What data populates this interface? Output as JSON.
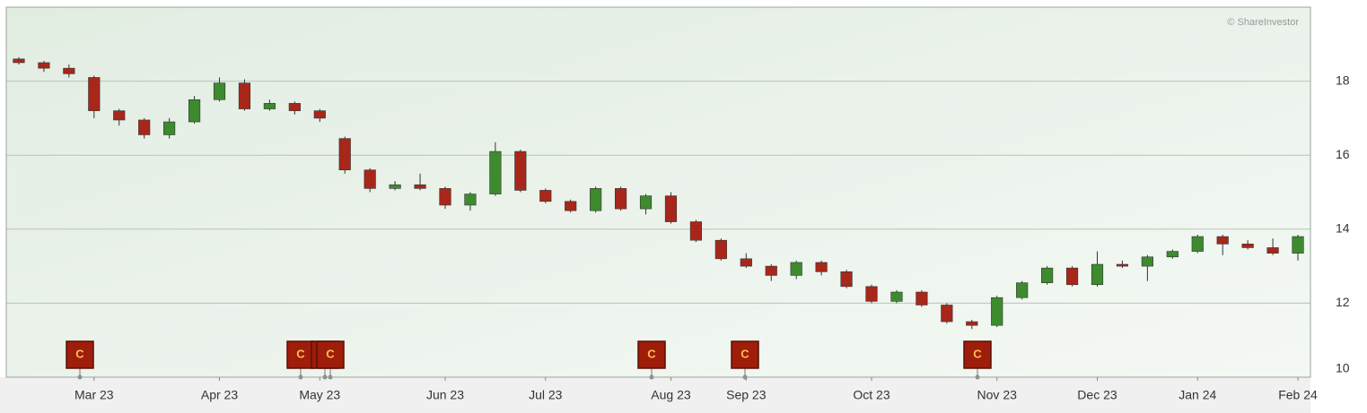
{
  "chart_data": {
    "type": "candlestick",
    "watermark": "© ShareInvestor",
    "categories": [
      null,
      null,
      null,
      "Mar 23",
      null,
      null,
      null,
      null,
      "Apr 23",
      null,
      null,
      null,
      "May 23",
      null,
      null,
      null,
      null,
      "Jun 23",
      null,
      null,
      null,
      "Jul 23",
      null,
      null,
      null,
      null,
      "Aug 23",
      null,
      null,
      "Sep 23",
      null,
      null,
      null,
      null,
      "Oct 23",
      null,
      null,
      null,
      null,
      "Nov 23",
      null,
      null,
      null,
      "Dec 23",
      null,
      null,
      null,
      "Jan 24",
      null,
      null,
      null,
      "Feb 24"
    ],
    "open": [
      18.6,
      18.5,
      18.35,
      18.1,
      17.2,
      16.95,
      16.55,
      16.9,
      17.5,
      17.95,
      17.25,
      17.4,
      17.2,
      16.45,
      15.6,
      15.1,
      15.2,
      15.1,
      14.65,
      14.95,
      16.1,
      15.05,
      14.75,
      14.5,
      15.1,
      14.55,
      14.9,
      14.2,
      13.7,
      13.2,
      13.0,
      12.75,
      13.1,
      12.85,
      12.45,
      12.05,
      12.3,
      11.95,
      11.5,
      11.4,
      12.15,
      12.55,
      12.95,
      12.5,
      13.05,
      13.0,
      13.25,
      13.4,
      13.8,
      13.6,
      13.5,
      13.35
    ],
    "high": [
      18.65,
      18.55,
      18.45,
      18.15,
      17.25,
      17.0,
      17.0,
      17.6,
      18.1,
      18.05,
      17.5,
      17.45,
      17.25,
      16.5,
      15.65,
      15.3,
      15.5,
      15.15,
      15.0,
      16.35,
      16.15,
      15.1,
      14.8,
      15.15,
      15.15,
      14.95,
      15.0,
      14.25,
      13.75,
      13.35,
      13.05,
      13.15,
      13.15,
      12.9,
      12.5,
      12.35,
      12.35,
      12.0,
      11.55,
      12.2,
      12.6,
      13.0,
      13.0,
      13.4,
      13.15,
      13.3,
      13.45,
      13.85,
      13.85,
      13.7,
      13.75,
      13.85
    ],
    "low": [
      18.45,
      18.25,
      18.1,
      17.0,
      16.8,
      16.45,
      16.45,
      16.85,
      17.45,
      17.2,
      17.2,
      17.1,
      16.9,
      15.5,
      15.0,
      15.05,
      15.05,
      14.55,
      14.5,
      14.9,
      15.0,
      14.7,
      14.45,
      14.45,
      14.5,
      14.4,
      14.15,
      13.65,
      13.15,
      12.95,
      12.6,
      12.65,
      12.75,
      12.4,
      12.0,
      12.0,
      11.9,
      11.45,
      11.3,
      11.35,
      12.1,
      12.5,
      12.45,
      12.45,
      12.95,
      12.6,
      13.2,
      13.35,
      13.3,
      13.45,
      13.3,
      13.15
    ],
    "close": [
      18.5,
      18.35,
      18.2,
      17.2,
      16.95,
      16.55,
      16.9,
      17.5,
      17.95,
      17.25,
      17.4,
      17.2,
      17.0,
      15.6,
      15.1,
      15.2,
      15.1,
      14.65,
      14.95,
      16.1,
      15.05,
      14.75,
      14.5,
      15.1,
      14.55,
      14.9,
      14.2,
      13.7,
      13.2,
      13.0,
      12.75,
      13.1,
      12.85,
      12.45,
      12.05,
      12.3,
      11.95,
      11.5,
      11.4,
      12.15,
      12.55,
      12.95,
      12.5,
      13.05,
      13.0,
      13.25,
      13.4,
      13.8,
      13.6,
      13.5,
      13.35,
      13.8
    ],
    "up_color": "#3d8b2e",
    "down_color": "#a8271a",
    "ylim": [
      10,
      20
    ],
    "yticks": [
      10,
      12,
      14,
      16,
      18
    ],
    "grid": true,
    "events": [
      "C",
      "C",
      "C",
      "C",
      "C",
      "C",
      "C"
    ]
  }
}
